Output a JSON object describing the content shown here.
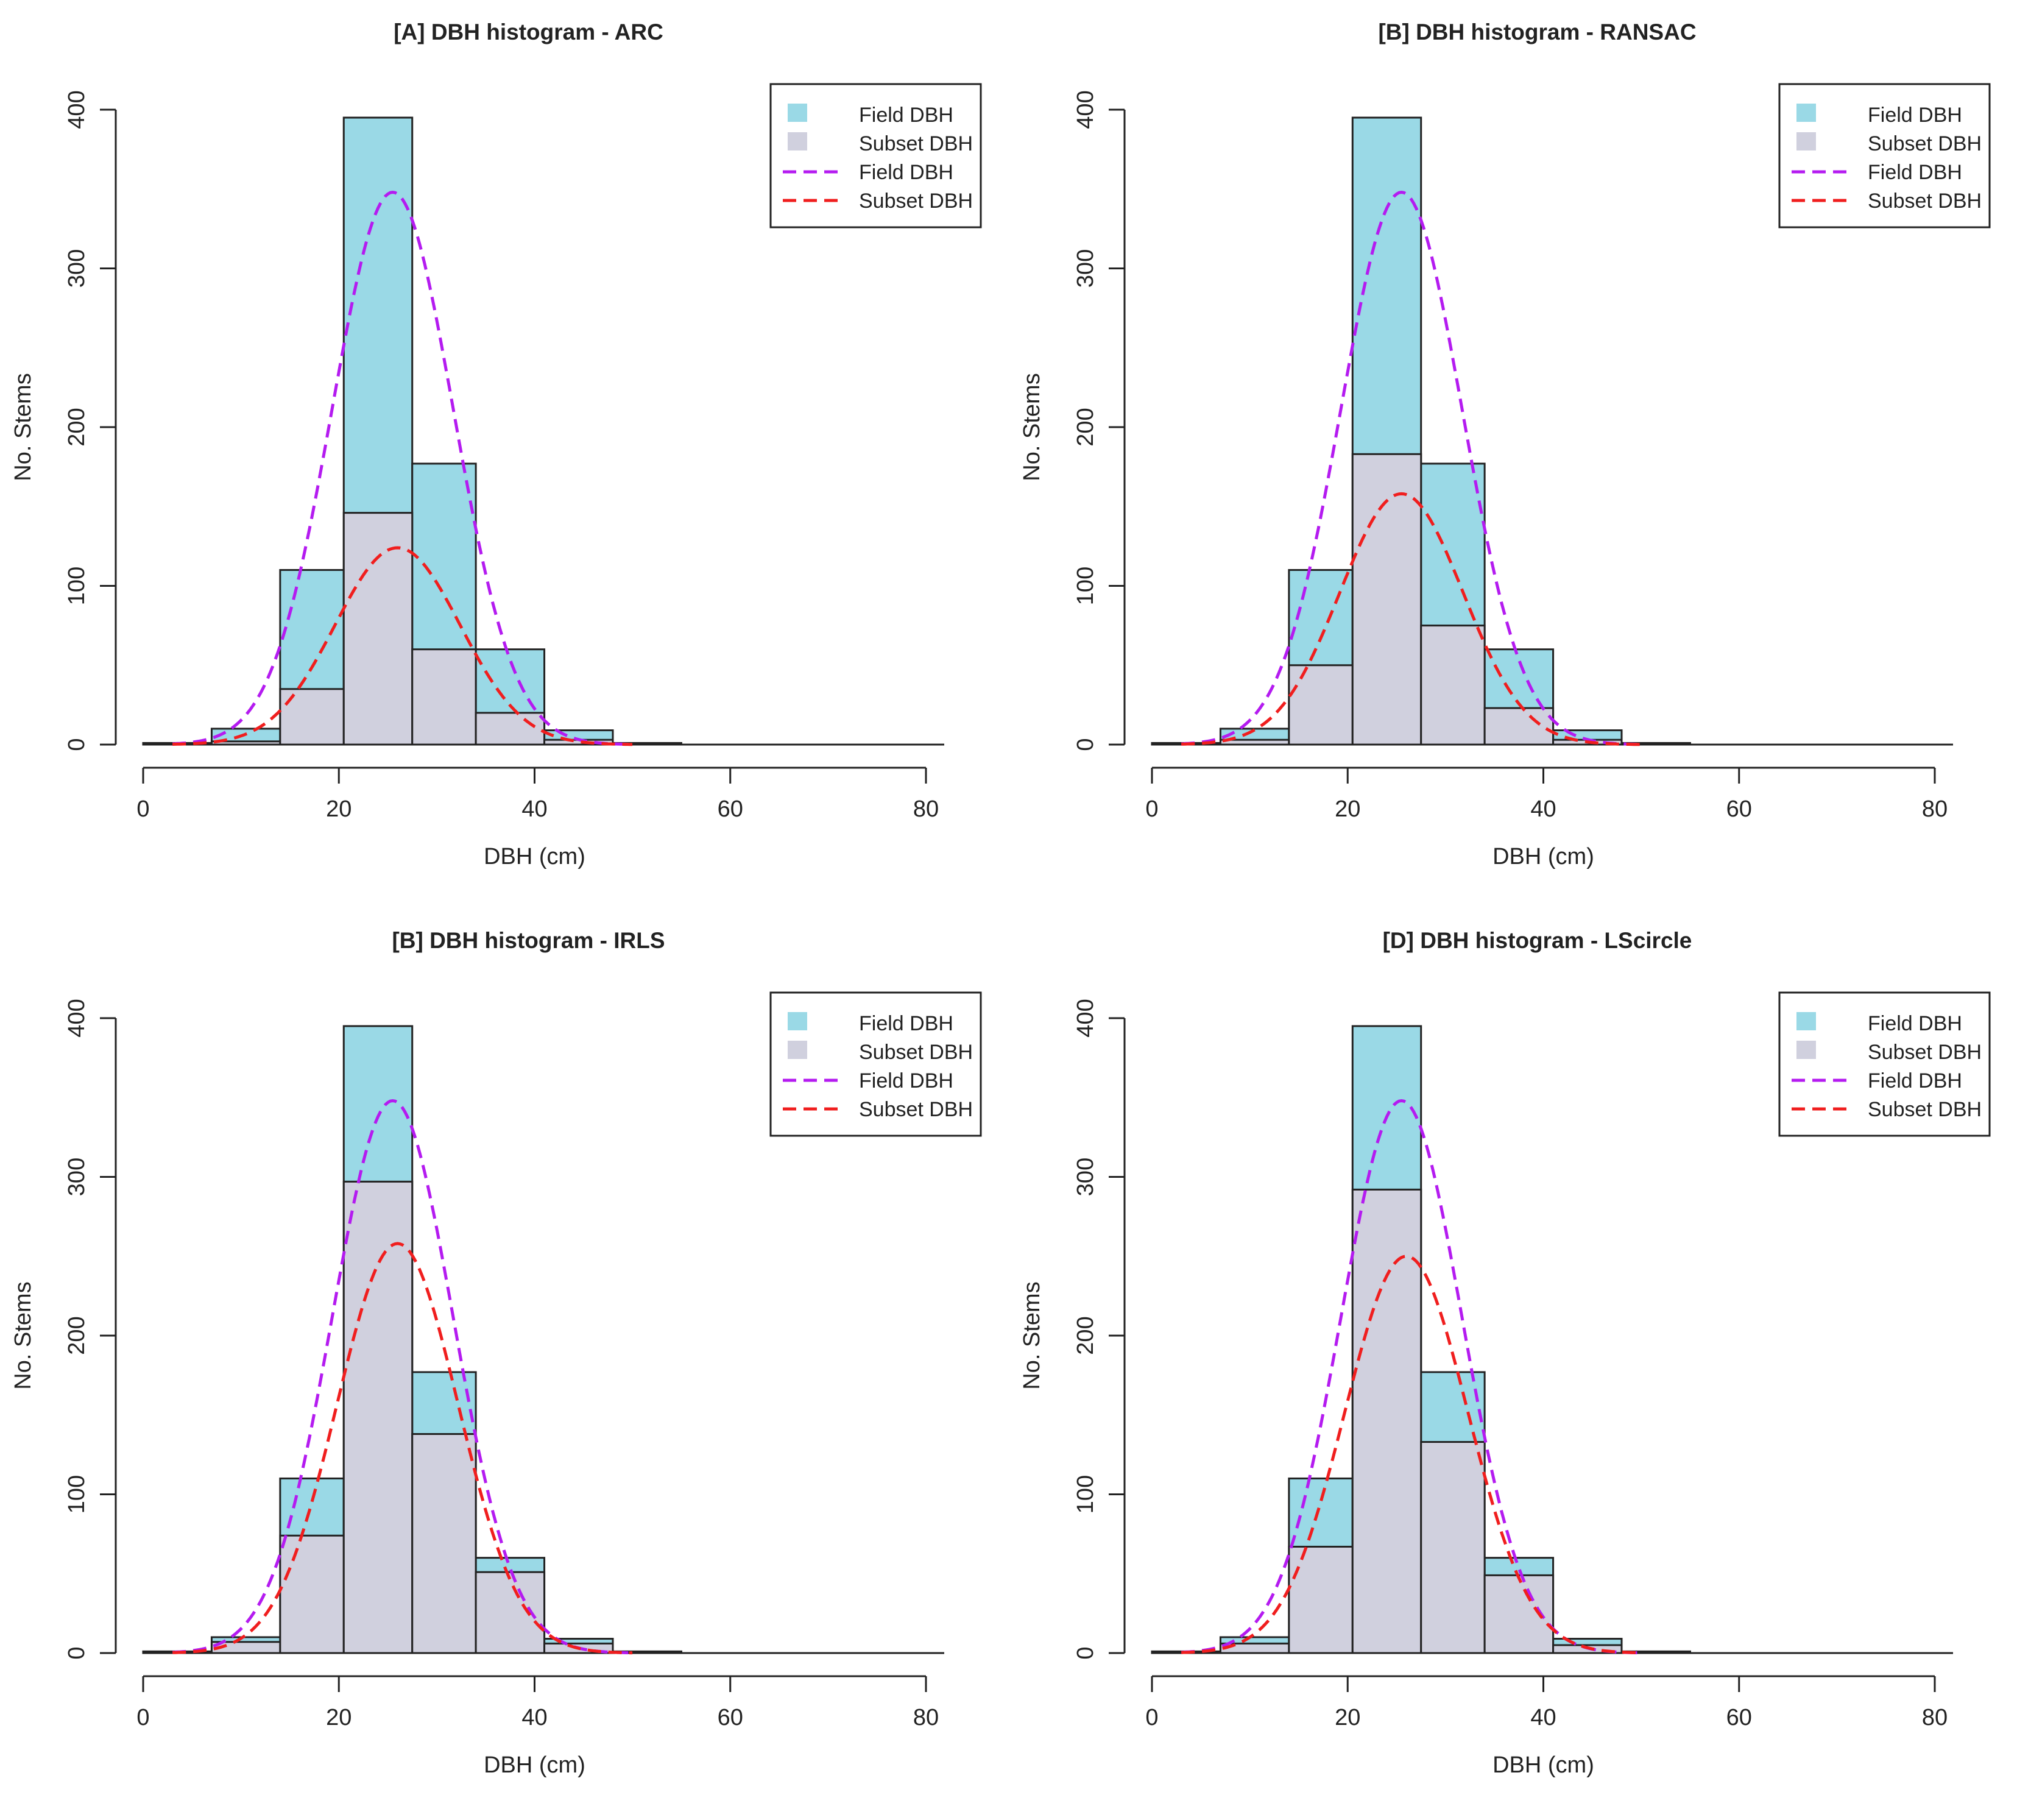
{
  "chart_data": [
    {
      "type": "bar",
      "title": "[A] DBH histogram - ARC",
      "xlabel": "DBH (cm)",
      "ylabel": "No. Stems",
      "xlim": [
        0,
        80
      ],
      "ylim": [
        0,
        400
      ],
      "xticks": [
        "0",
        "20",
        "40",
        "60",
        "80"
      ],
      "yticks": [
        "0",
        "100",
        "200",
        "300",
        "400"
      ],
      "bin_edges": [
        0,
        7,
        14,
        20.5,
        27.5,
        34,
        41,
        48,
        55
      ],
      "series": [
        {
          "name": "Field DBH",
          "kind": "histogram",
          "color": "#9ad9e6",
          "values": [
            1,
            10,
            110,
            395,
            177,
            60,
            9,
            1
          ]
        },
        {
          "name": "Subset DBH",
          "kind": "histogram",
          "color": "#d0d0de",
          "values": [
            0,
            2,
            35,
            146,
            60,
            20,
            3,
            0
          ]
        },
        {
          "name": "Field DBH",
          "kind": "density",
          "color": "#b41bf0",
          "mean": 25.5,
          "sd": 6.2,
          "peak": 348
        },
        {
          "name": "Subset DBH",
          "kind": "density",
          "color": "#f01e1e",
          "mean": 26,
          "sd": 6.4,
          "peak": 124
        }
      ],
      "legend": {
        "position": "top-right",
        "entries": [
          "Field DBH",
          "Subset DBH",
          "Field DBH",
          "Subset DBH"
        ]
      }
    },
    {
      "type": "bar",
      "title": "[B] DBH histogram - RANSAC",
      "xlabel": "DBH (cm)",
      "ylabel": "No. Stems",
      "xlim": [
        0,
        80
      ],
      "ylim": [
        0,
        400
      ],
      "xticks": [
        "0",
        "20",
        "40",
        "60",
        "80"
      ],
      "yticks": [
        "0",
        "100",
        "200",
        "300",
        "400"
      ],
      "bin_edges": [
        0,
        7,
        14,
        20.5,
        27.5,
        34,
        41,
        48,
        55
      ],
      "series": [
        {
          "name": "Field DBH",
          "kind": "histogram",
          "color": "#9ad9e6",
          "values": [
            1,
            10,
            110,
            395,
            177,
            60,
            9,
            1
          ]
        },
        {
          "name": "Subset DBH",
          "kind": "histogram",
          "color": "#d0d0de",
          "values": [
            0,
            3,
            50,
            183,
            75,
            23,
            3,
            0
          ]
        },
        {
          "name": "Field DBH",
          "kind": "density",
          "color": "#b41bf0",
          "mean": 25.5,
          "sd": 6.2,
          "peak": 348
        },
        {
          "name": "Subset DBH",
          "kind": "density",
          "color": "#f01e1e",
          "mean": 25.5,
          "sd": 6.3,
          "peak": 158
        }
      ],
      "legend": {
        "position": "top-right",
        "entries": [
          "Field DBH",
          "Subset DBH",
          "Field DBH",
          "Subset DBH"
        ]
      }
    },
    {
      "type": "bar",
      "title": "[B] DBH histogram - IRLS",
      "xlabel": "DBH (cm)",
      "ylabel": "No. Stems",
      "xlim": [
        0,
        80
      ],
      "ylim": [
        0,
        400
      ],
      "xticks": [
        "0",
        "20",
        "40",
        "60",
        "80"
      ],
      "yticks": [
        "0",
        "100",
        "200",
        "300",
        "400"
      ],
      "bin_edges": [
        0,
        7,
        14,
        20.5,
        27.5,
        34,
        41,
        48,
        55
      ],
      "series": [
        {
          "name": "Field DBH",
          "kind": "histogram",
          "color": "#9ad9e6",
          "values": [
            1,
            10,
            110,
            395,
            177,
            60,
            9,
            1
          ]
        },
        {
          "name": "Subset DBH",
          "kind": "histogram",
          "color": "#d0d0de",
          "values": [
            1,
            7,
            74,
            297,
            138,
            51,
            6,
            1
          ]
        },
        {
          "name": "Field DBH",
          "kind": "density",
          "color": "#b41bf0",
          "mean": 25.5,
          "sd": 6.2,
          "peak": 348
        },
        {
          "name": "Subset DBH",
          "kind": "density",
          "color": "#f01e1e",
          "mean": 26,
          "sd": 6.2,
          "peak": 258
        }
      ],
      "legend": {
        "position": "top-right",
        "entries": [
          "Field DBH",
          "Subset DBH",
          "Field DBH",
          "Subset DBH"
        ]
      }
    },
    {
      "type": "bar",
      "title": "[D] DBH histogram - LScircle",
      "xlabel": "DBH (cm)",
      "ylabel": "No. Stems",
      "xlim": [
        0,
        80
      ],
      "ylim": [
        0,
        400
      ],
      "xticks": [
        "0",
        "20",
        "40",
        "60",
        "80"
      ],
      "yticks": [
        "0",
        "100",
        "200",
        "300",
        "400"
      ],
      "bin_edges": [
        0,
        7,
        14,
        20.5,
        27.5,
        34,
        41,
        48,
        55
      ],
      "series": [
        {
          "name": "Field DBH",
          "kind": "histogram",
          "color": "#9ad9e6",
          "values": [
            1,
            10,
            110,
            395,
            177,
            60,
            9,
            1
          ]
        },
        {
          "name": "Subset DBH",
          "kind": "histogram",
          "color": "#d0d0de",
          "values": [
            1,
            6,
            67,
            292,
            133,
            49,
            5,
            1
          ]
        },
        {
          "name": "Field DBH",
          "kind": "density",
          "color": "#b41bf0",
          "mean": 25.5,
          "sd": 6.2,
          "peak": 348
        },
        {
          "name": "Subset DBH",
          "kind": "density",
          "color": "#f01e1e",
          "mean": 26,
          "sd": 6.3,
          "peak": 250
        }
      ],
      "legend": {
        "position": "top-right",
        "entries": [
          "Field DBH",
          "Subset DBH",
          "Field DBH",
          "Subset DBH"
        ]
      }
    }
  ]
}
